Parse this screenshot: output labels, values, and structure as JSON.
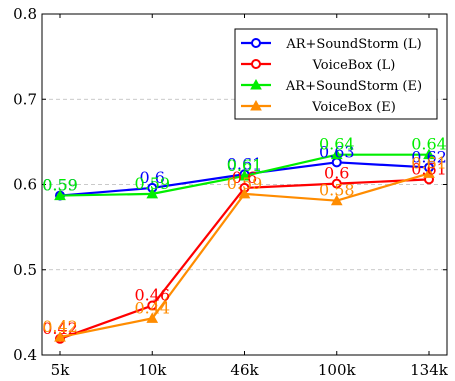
{
  "chart_data": {
    "type": "line",
    "categories": [
      "5k",
      "10k",
      "46k",
      "100k",
      "134k"
    ],
    "ylim": [
      0.4,
      0.8
    ],
    "yticks": [
      0.4,
      0.5,
      0.6,
      0.7,
      0.8
    ],
    "ytick_labels": [
      "0.4",
      "0.5",
      "0.6",
      "0.7",
      "0.8"
    ],
    "grid": "horizontal dashed",
    "legend_position": "top-right",
    "series": [
      {
        "name": "AR+SoundStorm (L)",
        "values": [
          0.587,
          0.596,
          0.612,
          0.626,
          0.62
        ],
        "labels": [
          "0.59",
          "0.6",
          "0.61",
          "0.63",
          "0.62"
        ],
        "color": "#0000ff",
        "marker": "circle"
      },
      {
        "name": "VoiceBox (L)",
        "values": [
          0.419,
          0.458,
          0.596,
          0.601,
          0.606
        ],
        "labels": [
          "0.42",
          "0.46",
          "0.6",
          "0.6",
          "0.61"
        ],
        "color": "#ff0000",
        "marker": "circle"
      },
      {
        "name": "AR+SoundStorm (E)",
        "values": [
          0.587,
          0.589,
          0.61,
          0.635,
          0.635
        ],
        "labels": [
          "0.59",
          "0.59",
          "0.61",
          "0.64",
          "0.64"
        ],
        "color": "#00ee00",
        "marker": "triangle"
      },
      {
        "name": "VoiceBox (E)",
        "values": [
          0.421,
          0.443,
          0.589,
          0.581,
          0.613
        ],
        "labels": [
          "0.42",
          "0.44",
          "0.59",
          "0.58",
          "0.61"
        ],
        "color": "#ff8c00",
        "marker": "triangle"
      }
    ]
  }
}
